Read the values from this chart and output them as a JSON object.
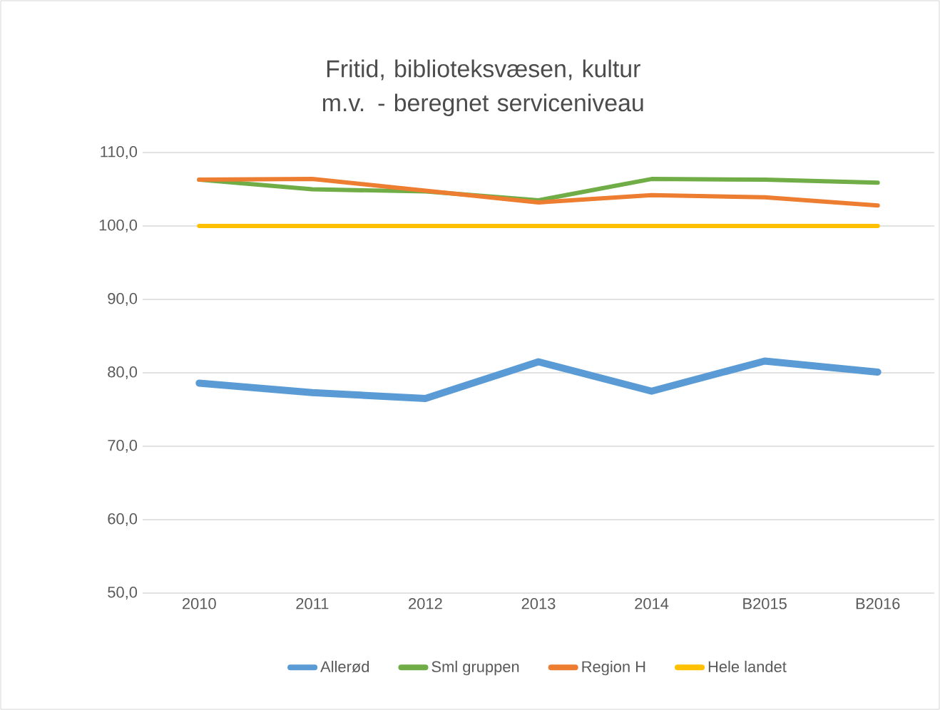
{
  "chart_data": {
    "type": "line",
    "title": "Fritid, biblioteksvæsen, kultur m.v. - beregnet serviceniveau",
    "categories": [
      "2010",
      "2011",
      "2012",
      "2013",
      "2014",
      "B2015",
      "B2016"
    ],
    "series": [
      {
        "name": "Allerød",
        "color": "#5b9bd5",
        "values": [
          78.6,
          77.3,
          76.5,
          81.5,
          77.5,
          81.6,
          80.1
        ]
      },
      {
        "name": "Sml gruppen",
        "color": "#70ad47",
        "values": [
          106.3,
          105.0,
          104.7,
          103.5,
          106.4,
          106.3,
          105.9
        ]
      },
      {
        "name": "Region H",
        "color": "#ed7d31",
        "values": [
          106.3,
          106.4,
          104.8,
          103.2,
          104.2,
          103.9,
          102.8
        ]
      },
      {
        "name": "Hele landet",
        "color": "#ffc000",
        "values": [
          100,
          100,
          100,
          100,
          100,
          100,
          100
        ]
      }
    ],
    "ylim": [
      50,
      110
    ],
    "yticks": [
      {
        "value": 50,
        "label": "50,0"
      },
      {
        "value": 60,
        "label": "60,0"
      },
      {
        "value": 70,
        "label": "70,0"
      },
      {
        "value": 80,
        "label": "80,0"
      },
      {
        "value": 90,
        "label": "90,0"
      },
      {
        "value": 100,
        "label": "100,0"
      },
      {
        "value": 110,
        "label": "110,0"
      }
    ],
    "grid": "y",
    "legend": "bottom",
    "marker": "none",
    "line_style": "solid"
  }
}
